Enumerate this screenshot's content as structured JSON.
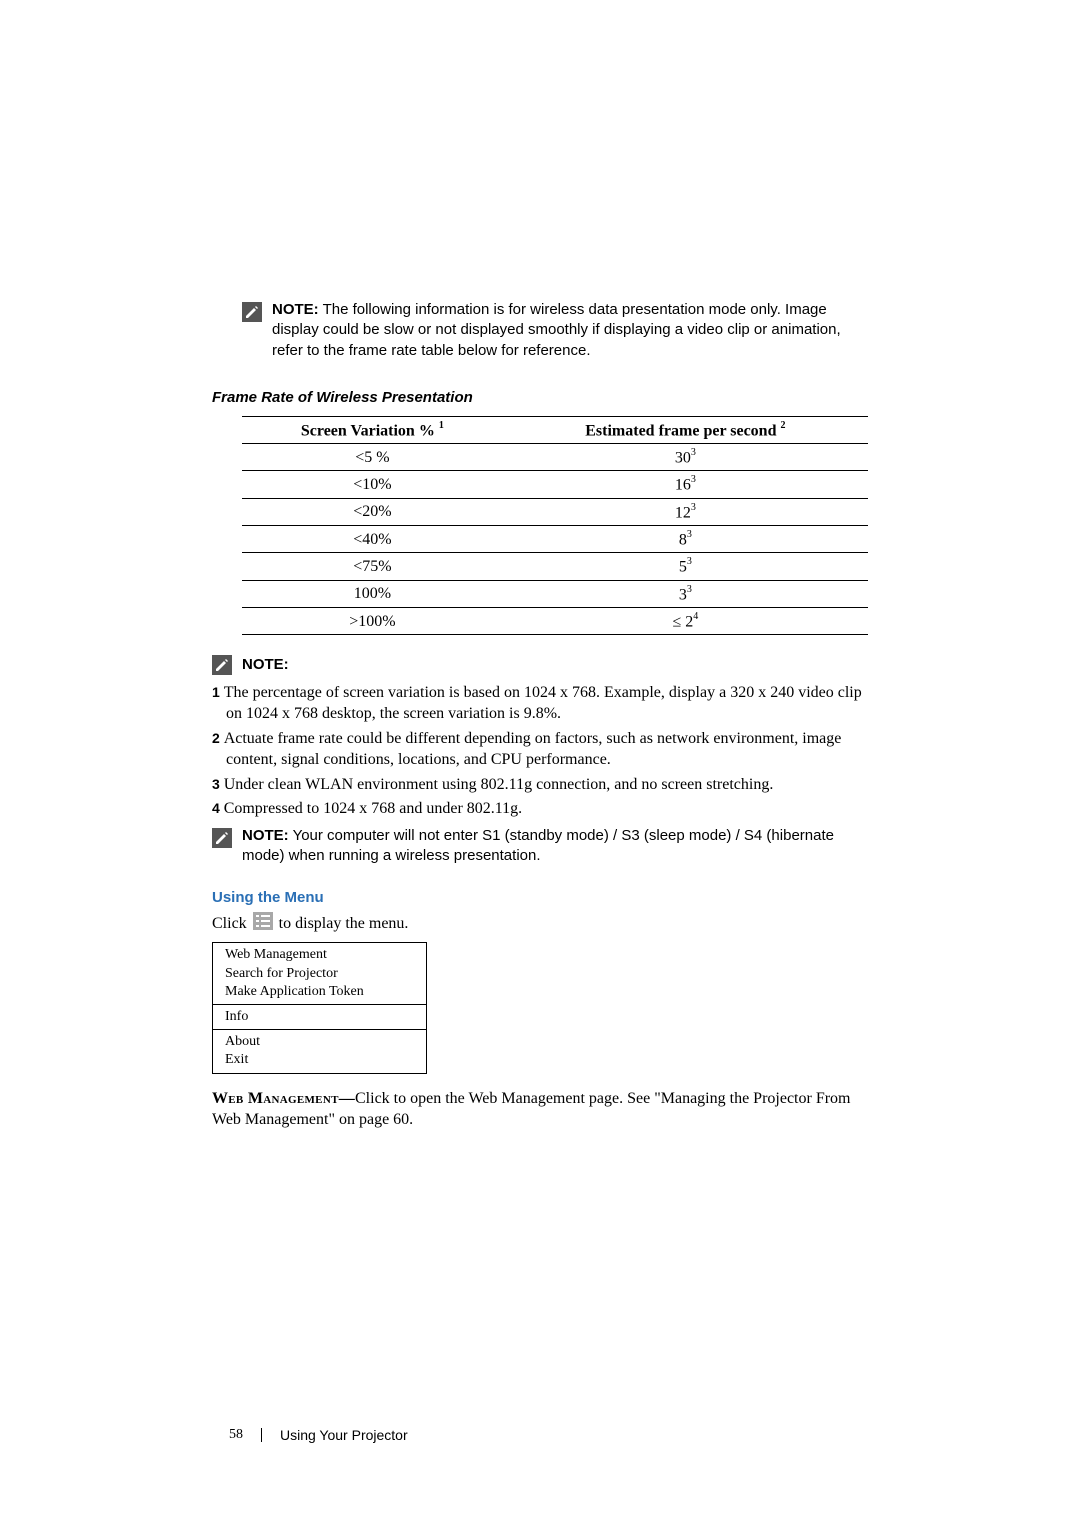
{
  "notes": {
    "label": "NOTE:",
    "top": "The following information is for wireless data presentation mode only. Image display could be slow or not displayed smoothly if displaying a video clip or animation, refer to the frame rate table below for reference.",
    "after_table_header": "NOTE:",
    "computer_sleep": "Your computer will not enter S1 (standby mode) / S3 (sleep mode) / S4 (hibernate mode) when running a wireless presentation."
  },
  "frame_rate_section": {
    "title": "Frame Rate of Wireless Presentation",
    "col1": "Screen Variation % ",
    "col1_sup": "1",
    "col2": "Estimated frame per second ",
    "col2_sup": "2",
    "rows": [
      {
        "variation": "<5 %",
        "fps": "30",
        "fps_sup": "3"
      },
      {
        "variation": "<10%",
        "fps": "16",
        "fps_sup": "3"
      },
      {
        "variation": "<20%",
        "fps": "12",
        "fps_sup": "3"
      },
      {
        "variation": "<40%",
        "fps": "8",
        "fps_sup": "3"
      },
      {
        "variation": "<75%",
        "fps": "5",
        "fps_sup": "3"
      },
      {
        "variation": "100%",
        "fps": "3",
        "fps_sup": "3"
      },
      {
        "variation": ">100%",
        "fps": "≤ 2",
        "fps_sup": "4"
      }
    ]
  },
  "footnotes": {
    "1": "The percentage of screen variation is based on 1024 x 768.   Example, display a 320 x 240 video clip on 1024 x 768 desktop, the screen variation is 9.8%.",
    "2": "Actuate frame rate could be different depending on factors, such as network environment, image content, signal conditions, locations, and CPU performance.",
    "3": "Under clean WLAN environment using 802.11g connection, and no screen stretching.",
    "4": "Compressed to 1024 x 768 and under 802.11g."
  },
  "using_menu": {
    "heading": "Using the Menu",
    "click_text_pre": "Click ",
    "click_text_post": " to display the menu.",
    "menu_items": {
      "g1": [
        "Web Management",
        "Search for Projector",
        "Make Application Token"
      ],
      "g2": [
        "Info"
      ],
      "g3": [
        "About",
        "Exit"
      ]
    }
  },
  "web_mgmt": {
    "label": "Web Management—",
    "text": "Click to open the Web Management page. See \"Managing the Projector From Web Management\" on page 60."
  },
  "footer": {
    "page": "58",
    "section": "Using Your Projector"
  },
  "colors": {
    "heading_blue": "#2a6fb5",
    "icon_fill": "#555555",
    "icon_slash": "#ffffff",
    "menu_icon_bg": "#a8a8a8"
  }
}
